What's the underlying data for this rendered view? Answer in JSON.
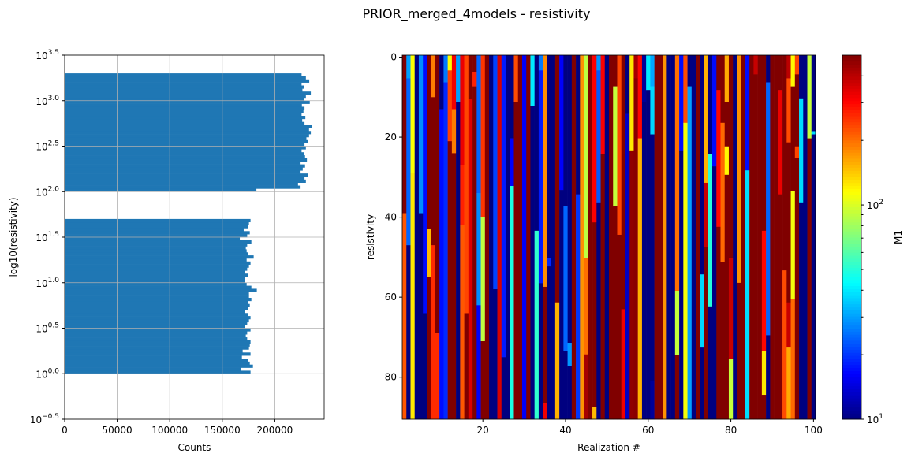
{
  "figure": {
    "title": "PRIOR_merged_4models - resistivity"
  },
  "chart_data": [
    {
      "type": "bar",
      "orientation": "horizontal",
      "xlabel": "Counts",
      "ylabel": "log10(resistivity)",
      "xlim": [
        0,
        247000
      ],
      "ylim_log10": [
        -0.5,
        3.5
      ],
      "y_scale": "log",
      "grid": true,
      "bar_color": "#1f77b4",
      "xticks": [
        0,
        50000,
        100000,
        150000,
        200000
      ],
      "xtick_labels": [
        "0",
        "50000",
        "100000",
        "150000",
        "200000"
      ],
      "yticks_log10": [
        -0.5,
        0.0,
        0.5,
        1.0,
        1.5,
        2.0,
        2.5,
        3.0,
        3.5
      ],
      "ytick_exponents": [
        "−0.5",
        "0.0",
        "0.5",
        "1.0",
        "1.5",
        "2.0",
        "2.5",
        "3.0",
        "3.5"
      ],
      "ytick_base": "10",
      "groups": [
        {
          "log10_range": [
            0.0,
            1.7
          ],
          "counts": [
            176900,
            167400,
            179200,
            176200,
            174900,
            168700,
            176900,
            169400,
            175400,
            176200,
            176900,
            173700,
            172400,
            173700,
            176900,
            171900,
            173700,
            175400,
            176900,
            174900,
            171200,
            174900,
            176200,
            174900,
            177700,
            175400,
            175400,
            182900,
            177700,
            173200,
            171200,
            171700,
            174900,
            171200,
            173700,
            175400,
            176900,
            173200,
            179900,
            174900,
            173200,
            172400,
            173700,
            177700,
            166700,
            173700,
            176200,
            170400,
            174400,
            175400,
            176900
          ]
        },
        {
          "log10_range": [
            2.0,
            3.3
          ],
          "counts": [
            182500,
            223800,
            222100,
            229600,
            228300,
            231300,
            223800,
            226600,
            228800,
            223800,
            230600,
            228800,
            227600,
            225500,
            229600,
            228300,
            231300,
            230100,
            232600,
            234300,
            232600,
            235100,
            228300,
            226100,
            229100,
            225500,
            227300,
            228300,
            225800,
            233300,
            227600,
            229600,
            234300,
            226300,
            227600,
            225500,
            232800,
            229600,
            225500
          ]
        }
      ]
    },
    {
      "type": "heatmap",
      "xlabel": "Realization #",
      "ylabel": "resistivity",
      "xlim": [
        0.5,
        100.5
      ],
      "ylim": [
        90.5,
        -0.5
      ],
      "xticks": [
        20,
        40,
        60,
        80,
        100
      ],
      "xtick_labels": [
        "20",
        "40",
        "60",
        "80",
        "100"
      ],
      "yticks": [
        0,
        20,
        40,
        60,
        80
      ],
      "ytick_labels": [
        "0",
        "20",
        "40",
        "60",
        "80"
      ],
      "colormap": "jet",
      "color_scale": "log",
      "clim": [
        10,
        500
      ],
      "colorbar": {
        "label": "M1",
        "ticks": [
          10,
          100
        ],
        "tick_base": "10",
        "tick_exponents": [
          "1",
          "2"
        ]
      },
      "columns_segments_start_value": [
        [
          [
            0,
            500
          ],
          [
            39,
            220
          ]
        ],
        [
          [
            0,
            30
          ],
          [
            5.3,
            24
          ],
          [
            47,
            10
          ]
        ],
        [
          [
            0,
            115
          ],
          [
            29,
            125
          ]
        ],
        [
          [
            0,
            10
          ]
        ],
        [
          [
            0,
            28
          ],
          [
            39,
            10
          ]
        ],
        [
          [
            0,
            17
          ],
          [
            64,
            10
          ]
        ],
        [
          [
            0,
            500
          ],
          [
            43,
            150
          ],
          [
            55,
            500
          ]
        ],
        [
          [
            0,
            190
          ],
          [
            10,
            500
          ],
          [
            47,
            260
          ]
        ],
        [
          [
            0,
            500
          ],
          [
            69,
            260
          ]
        ],
        [
          [
            0,
            10
          ],
          [
            13,
            17
          ]
        ],
        [
          [
            0,
            26
          ],
          [
            6.3,
            19
          ]
        ],
        [
          [
            0,
            115
          ],
          [
            3.3,
            240
          ],
          [
            21,
            500
          ]
        ],
        [
          [
            0,
            325
          ],
          [
            13,
            190
          ],
          [
            24,
            500
          ]
        ],
        [
          [
            0,
            30
          ],
          [
            11.2,
            10
          ]
        ],
        [
          [
            0,
            330
          ],
          [
            27,
            270
          ],
          [
            42,
            220
          ]
        ],
        [
          [
            0,
            235
          ],
          [
            64,
            500
          ]
        ],
        [
          [
            0,
            500
          ],
          [
            10.5,
            350
          ]
        ],
        [
          [
            0,
            500
          ],
          [
            3.8,
            270
          ],
          [
            7.3,
            500
          ]
        ],
        [
          [
            0,
            24
          ],
          [
            34,
            28
          ],
          [
            62,
            16
          ]
        ],
        [
          [
            0,
            250
          ],
          [
            40,
            90
          ],
          [
            71,
            500
          ]
        ],
        [
          [
            0,
            500
          ]
        ],
        [
          [
            0,
            10
          ]
        ],
        [
          [
            0,
            21
          ],
          [
            58,
            10
          ]
        ],
        [
          [
            0,
            360
          ]
        ],
        [
          [
            0,
            18
          ],
          [
            75,
            10
          ]
        ],
        [
          [
            0,
            10
          ]
        ],
        [
          [
            0,
            10
          ],
          [
            20.3,
            16
          ],
          [
            32.2,
            48
          ]
        ],
        [
          [
            0,
            230
          ],
          [
            11.2,
            500
          ]
        ],
        [
          [
            0,
            500
          ]
        ],
        [
          [
            0,
            16
          ]
        ],
        [
          [
            0,
            500
          ]
        ],
        [
          [
            0,
            40
          ],
          [
            12.2,
            10
          ]
        ],
        [
          [
            0,
            10
          ],
          [
            43.4,
            52
          ]
        ],
        [
          [
            0,
            26
          ],
          [
            3.3,
            18
          ],
          [
            56.5,
            10
          ]
        ],
        [
          [
            0,
            180
          ],
          [
            57.4,
            500
          ],
          [
            86.5,
            320
          ]
        ],
        [
          [
            0,
            10
          ],
          [
            50.3,
            19
          ],
          [
            52.3,
            10
          ]
        ],
        [
          [
            0,
            10
          ]
        ],
        [
          [
            0,
            500
          ],
          [
            61.3,
            155
          ]
        ],
        [
          [
            0,
            16
          ],
          [
            33.2,
            10
          ]
        ],
        [
          [
            0,
            10
          ],
          [
            37.3,
            24
          ],
          [
            73.4,
            10
          ]
        ],
        [
          [
            0,
            10
          ],
          [
            71.4,
            29
          ],
          [
            77.3,
            10
          ]
        ],
        [
          [
            0,
            500
          ]
        ],
        [
          [
            0,
            10
          ],
          [
            34.3,
            20
          ]
        ],
        [
          [
            0,
            175
          ]
        ],
        [
          [
            0,
            90
          ],
          [
            50.3,
            200
          ],
          [
            74.3,
            430
          ]
        ],
        [
          [
            0,
            500
          ]
        ],
        [
          [
            0,
            310
          ],
          [
            41.3,
            500
          ],
          [
            87.5,
            150
          ]
        ],
        [
          [
            0,
            29
          ],
          [
            3.3,
            23
          ],
          [
            36.3,
            10
          ]
        ],
        [
          [
            0,
            310
          ],
          [
            24.2,
            500
          ]
        ],
        [
          [
            0,
            10
          ]
        ],
        [
          [
            0,
            500
          ]
        ],
        [
          [
            0,
            500
          ],
          [
            7.3,
            92
          ],
          [
            37.3,
            500
          ]
        ],
        [
          [
            0,
            235
          ],
          [
            44.4,
            500
          ]
        ],
        [
          [
            0,
            500
          ],
          [
            63,
            325
          ]
        ],
        [
          [
            0,
            10
          ],
          [
            14.2,
            13
          ]
        ],
        [
          [
            0,
            125
          ],
          [
            23.3,
            470
          ]
        ],
        [
          [
            0,
            430
          ],
          [
            5.3,
            480
          ]
        ],
        [
          [
            0,
            300
          ],
          [
            20.3,
            155
          ]
        ],
        [
          [
            0,
            11
          ],
          [
            11.2,
            10
          ]
        ],
        [
          [
            0,
            40
          ],
          [
            8.2,
            10
          ]
        ],
        [
          [
            0,
            31
          ],
          [
            7.3,
            37
          ],
          [
            19.3,
            10
          ],
          [
            81,
            11
          ]
        ],
        [
          [
            0,
            500
          ]
        ],
        [
          [
            0,
            500
          ]
        ],
        [
          [
            0,
            175
          ]
        ],
        [
          [
            0,
            10
          ]
        ],
        [
          [
            0,
            10
          ]
        ],
        [
          [
            0,
            200
          ],
          [
            58.4,
            92
          ],
          [
            74.4,
            500
          ]
        ],
        [
          [
            0,
            17
          ],
          [
            23.3,
            10
          ]
        ],
        [
          [
            0,
            230
          ],
          [
            16.4,
            112
          ]
        ],
        [
          [
            0,
            10
          ],
          [
            7.3,
            30
          ]
        ],
        [
          [
            0,
            10
          ]
        ],
        [
          [
            0,
            500
          ]
        ],
        [
          [
            0,
            10
          ],
          [
            54.3,
            37
          ],
          [
            72.4,
            10
          ]
        ],
        [
          [
            0,
            155
          ],
          [
            31.4,
            380
          ],
          [
            47.4,
            500
          ]
        ],
        [
          [
            0,
            10
          ],
          [
            24.3,
            50
          ],
          [
            62.3,
            10
          ]
        ],
        [
          [
            0,
            17
          ],
          [
            27.3,
            10
          ]
        ],
        [
          [
            0,
            500
          ],
          [
            8.2,
            300
          ],
          [
            42.4,
            500
          ]
        ],
        [
          [
            0,
            500
          ],
          [
            16.4,
            205
          ],
          [
            51.3,
            500
          ]
        ],
        [
          [
            0,
            160
          ],
          [
            11.2,
            500
          ],
          [
            22.3,
            118
          ],
          [
            29.4,
            500
          ]
        ],
        [
          [
            0,
            500
          ],
          [
            50.3,
            380
          ],
          [
            75.4,
            92
          ]
        ],
        [
          [
            0,
            10
          ]
        ],
        [
          [
            0,
            175
          ],
          [
            56.4,
            500
          ]
        ],
        [
          [
            0,
            500
          ]
        ],
        [
          [
            0,
            17
          ],
          [
            28.3,
            38
          ]
        ],
        [
          [
            0,
            500
          ]
        ],
        [
          [
            0,
            380
          ],
          [
            4.3,
            500
          ]
        ],
        [
          [
            0,
            500
          ]
        ],
        [
          [
            0,
            500
          ],
          [
            43.4,
            300
          ],
          [
            73.4,
            125
          ],
          [
            84.4,
            500
          ]
        ],
        [
          [
            0,
            10
          ],
          [
            6.3,
            24
          ],
          [
            69.5,
            10
          ]
        ],
        [
          [
            0,
            500
          ]
        ],
        [
          [
            0,
            500
          ]
        ],
        [
          [
            0,
            500
          ],
          [
            8.2,
            330
          ],
          [
            34.3,
            500
          ]
        ],
        [
          [
            0,
            500
          ],
          [
            53.3,
            230
          ]
        ],
        [
          [
            0,
            400
          ],
          [
            5.3,
            230
          ],
          [
            21.3,
            500
          ],
          [
            61.3,
            380
          ],
          [
            72.4,
            160
          ]
        ],
        [
          [
            0,
            118
          ],
          [
            7.3,
            500
          ],
          [
            33.4,
            110
          ],
          [
            60.4,
            205
          ]
        ],
        [
          [
            0,
            235
          ],
          [
            4.3,
            500
          ],
          [
            22.3,
            235
          ],
          [
            25.2,
            500
          ]
        ],
        [
          [
            0,
            10
          ],
          [
            10.3,
            38
          ],
          [
            36.3,
            10
          ]
        ],
        [
          [
            0,
            10
          ]
        ],
        [
          [
            0,
            92
          ],
          [
            20.3,
            500
          ]
        ],
        [
          [
            0,
            10
          ],
          [
            18.5,
            38
          ],
          [
            19.3,
            10
          ]
        ]
      ]
    }
  ]
}
